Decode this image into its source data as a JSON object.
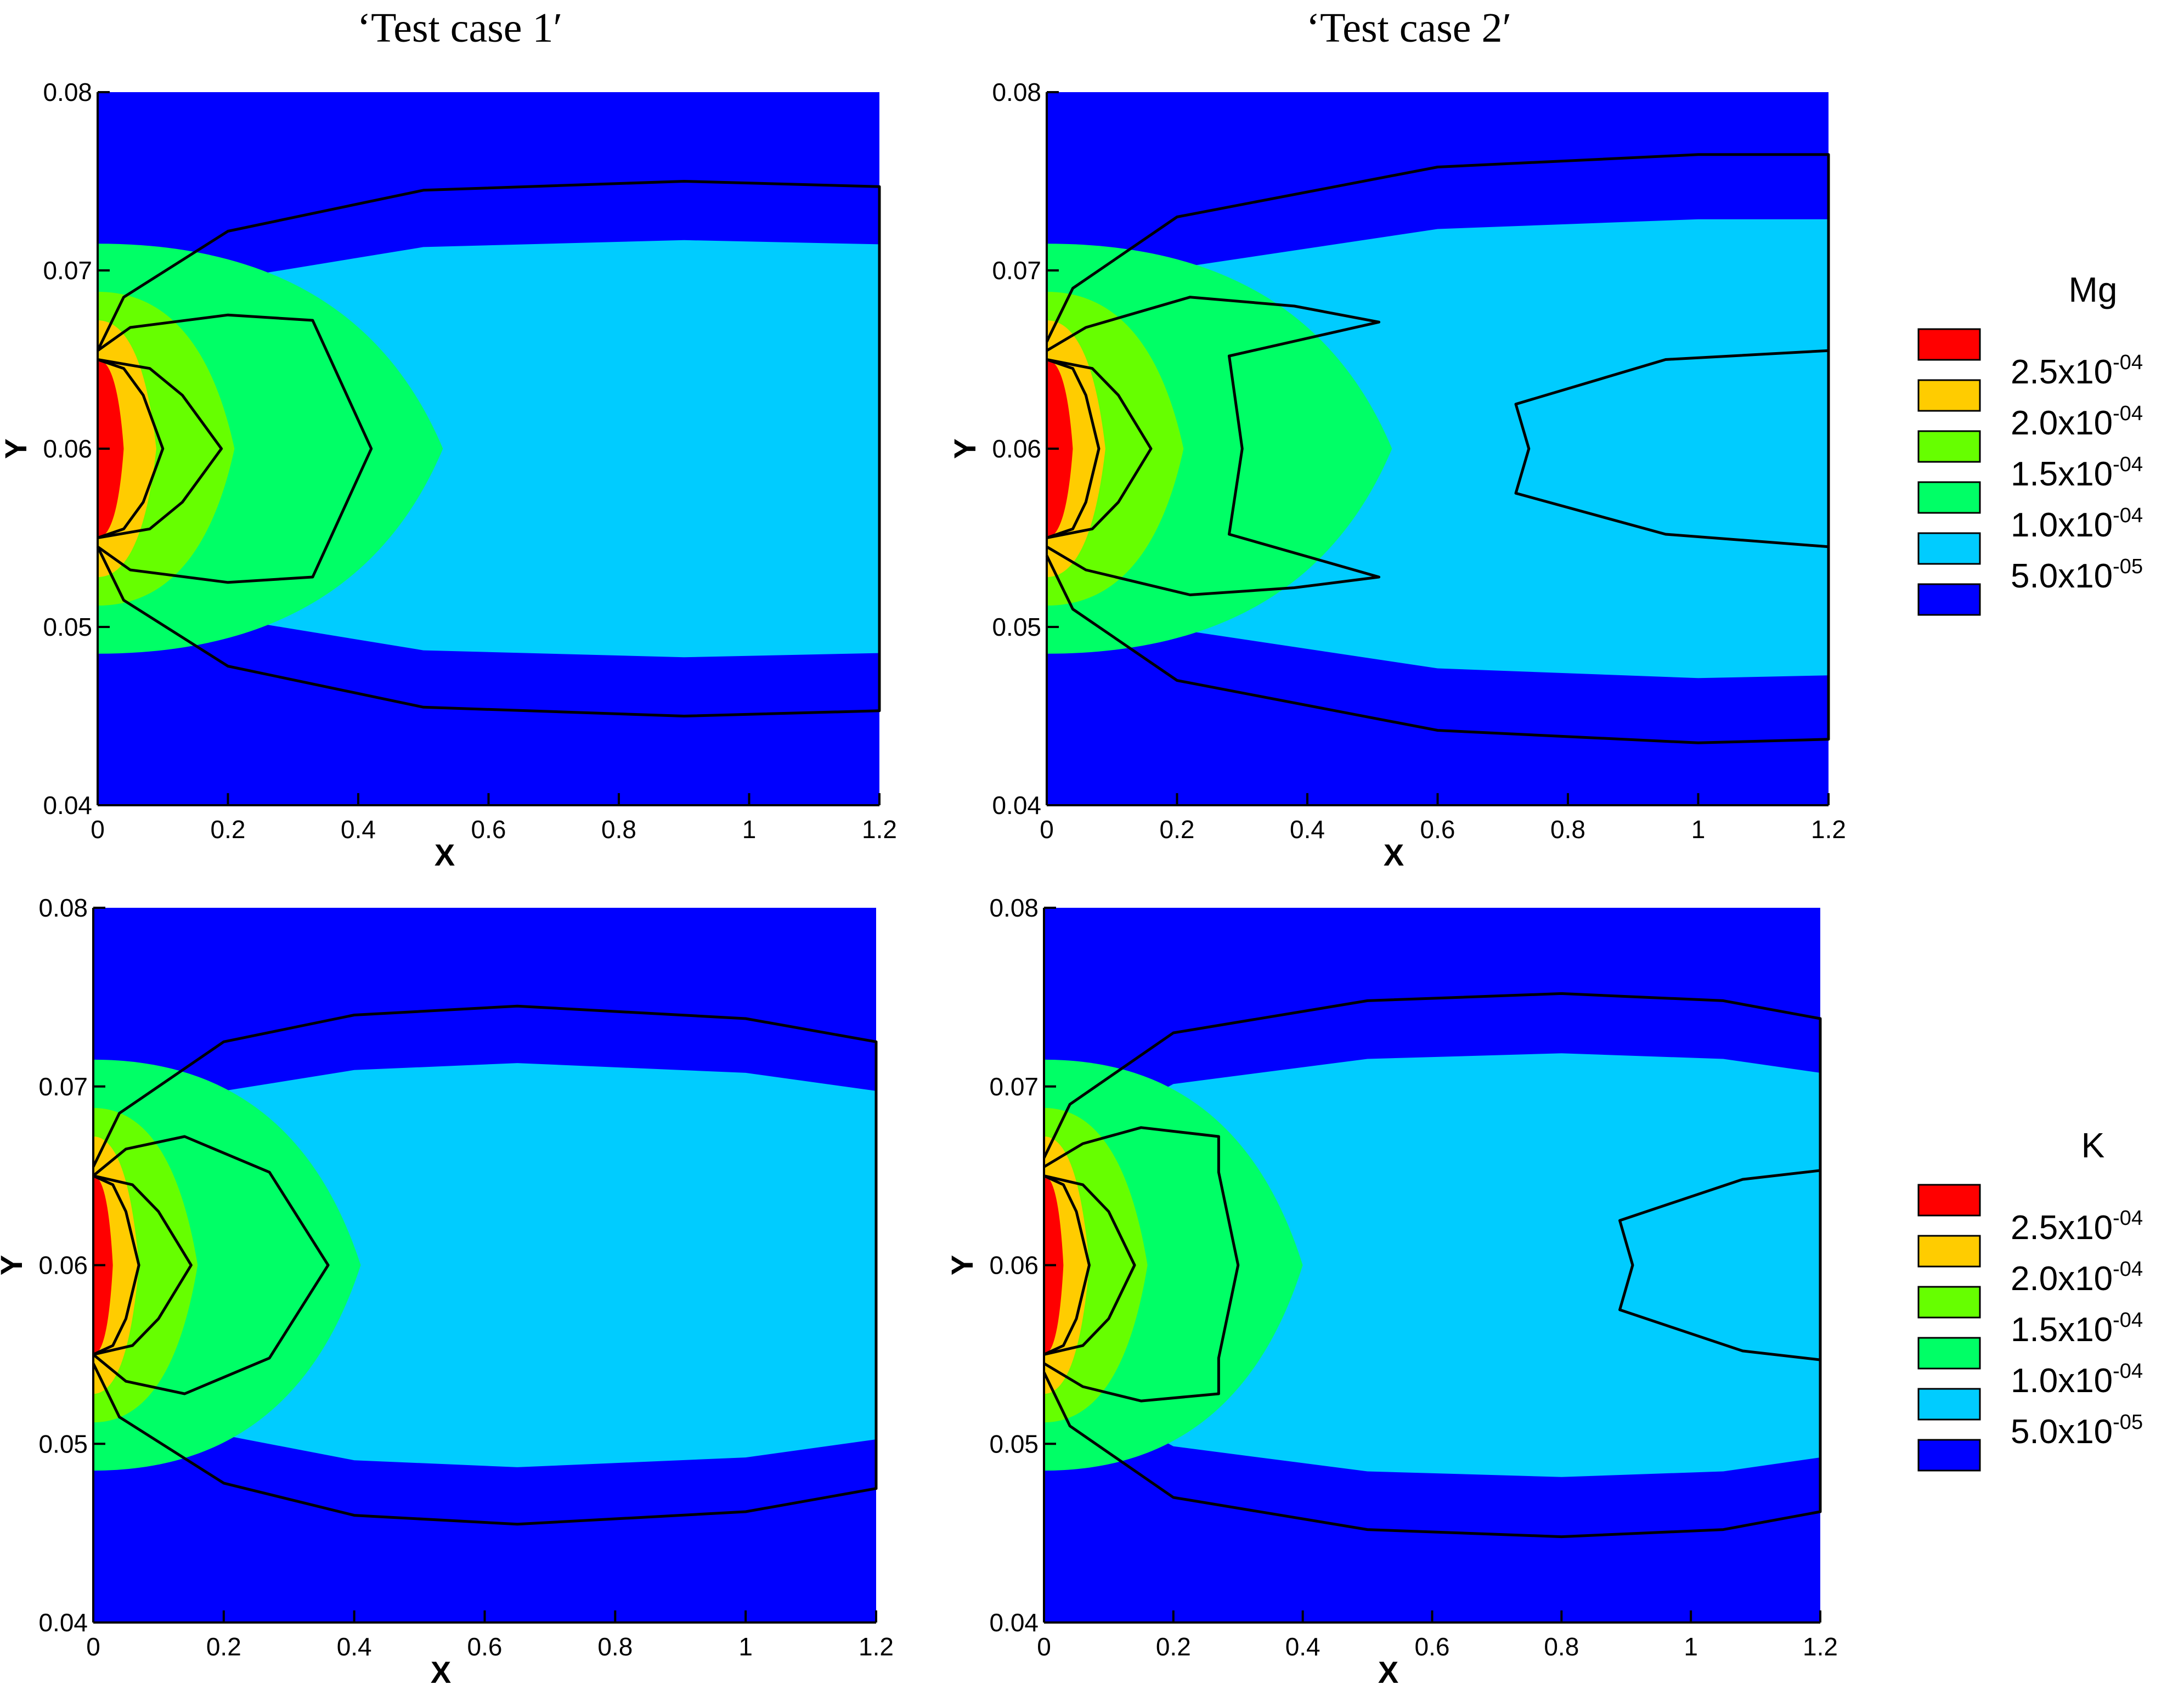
{
  "headers": [
    "‘Test case 1′",
    "‘Test case 2′"
  ],
  "colors": {
    "band_0": "#0000ff",
    "band_1": "#00ccff",
    "band_2": "#00ff66",
    "band_3": "#66ff00",
    "band_4": "#ffcc00",
    "band_5": "#ff0000",
    "contour_line": "#000000"
  },
  "legends": [
    {
      "title": "Mg",
      "entries": [
        {
          "mantissa": "2.5x10",
          "exp": "-04"
        },
        {
          "mantissa": "2.0x10",
          "exp": "-04"
        },
        {
          "mantissa": "1.5x10",
          "exp": "-04"
        },
        {
          "mantissa": "1.0x10",
          "exp": "-04"
        },
        {
          "mantissa": "5.0x10",
          "exp": "-05"
        }
      ]
    },
    {
      "title": "K",
      "entries": [
        {
          "mantissa": "2.5x10",
          "exp": "-04"
        },
        {
          "mantissa": "2.0x10",
          "exp": "-04"
        },
        {
          "mantissa": "1.5x10",
          "exp": "-04"
        },
        {
          "mantissa": "1.0x10",
          "exp": "-04"
        },
        {
          "mantissa": "5.0x10",
          "exp": "-05"
        }
      ]
    }
  ],
  "chart_data": [
    {
      "type": "heatmap",
      "species": "Mg",
      "case": "Test case 1",
      "xlabel": "X",
      "ylabel": "Y",
      "xlim": [
        0,
        1.2
      ],
      "ylim": [
        0.04,
        0.08
      ],
      "xticks": [
        "0",
        "0.2",
        "0.4",
        "0.6",
        "0.8",
        "1",
        "1.2"
      ],
      "yticks": [
        "0.04",
        "0.05",
        "0.06",
        "0.07",
        "0.08"
      ],
      "levels": [
        5e-05,
        0.0001,
        0.00015,
        0.0002,
        0.00025
      ],
      "filled_extent_x": [
        1.2,
        0.53,
        0.21,
        0.09,
        0.04
      ],
      "contour_lines": [
        [
          [
            0,
            0.0655
          ],
          [
            0.04,
            0.0685
          ],
          [
            0.2,
            0.0722
          ],
          [
            0.5,
            0.0745
          ],
          [
            0.9,
            0.075
          ],
          [
            1.2,
            0.0747
          ],
          [
            1.2,
            0.0453
          ],
          [
            0.9,
            0.045
          ],
          [
            0.5,
            0.0455
          ],
          [
            0.2,
            0.0478
          ],
          [
            0.04,
            0.0515
          ],
          [
            0,
            0.0545
          ]
        ],
        [
          [
            0,
            0.0655
          ],
          [
            0.05,
            0.0668
          ],
          [
            0.2,
            0.0675
          ],
          [
            0.33,
            0.0672
          ],
          [
            0.42,
            0.06
          ],
          [
            0.33,
            0.0528
          ],
          [
            0.2,
            0.0525
          ],
          [
            0.05,
            0.0532
          ],
          [
            0,
            0.0545
          ]
        ],
        [
          [
            0,
            0.065
          ],
          [
            0.08,
            0.0645
          ],
          [
            0.13,
            0.063
          ],
          [
            0.19,
            0.06
          ],
          [
            0.13,
            0.057
          ],
          [
            0.08,
            0.0555
          ],
          [
            0,
            0.055
          ]
        ],
        [
          [
            0,
            0.065
          ],
          [
            0.04,
            0.0645
          ],
          [
            0.07,
            0.063
          ],
          [
            0.1,
            0.06
          ],
          [
            0.07,
            0.057
          ],
          [
            0.04,
            0.0555
          ],
          [
            0,
            0.055
          ]
        ]
      ]
    },
    {
      "type": "heatmap",
      "species": "Mg",
      "case": "Test case 2",
      "xlabel": "X",
      "ylabel": "Y",
      "xlim": [
        0,
        1.2
      ],
      "ylim": [
        0.04,
        0.08
      ],
      "xticks": [
        "0",
        "0.2",
        "0.4",
        "0.6",
        "0.8",
        "1",
        "1.2"
      ],
      "yticks": [
        "0.04",
        "0.05",
        "0.06",
        "0.07",
        "0.08"
      ],
      "levels": [
        5e-05,
        0.0001,
        0.00015,
        0.0002,
        0.00025
      ],
      "filled_extent_x": [
        1.2,
        0.53,
        0.21,
        0.09,
        0.04
      ],
      "contour_lines": [
        [
          [
            0,
            0.066
          ],
          [
            0.04,
            0.069
          ],
          [
            0.2,
            0.073
          ],
          [
            0.6,
            0.0758
          ],
          [
            1.0,
            0.0765
          ],
          [
            1.2,
            0.0765
          ],
          [
            1.2,
            0.0437
          ],
          [
            1.0,
            0.0435
          ],
          [
            0.6,
            0.0442
          ],
          [
            0.2,
            0.047
          ],
          [
            0.04,
            0.051
          ],
          [
            0,
            0.054
          ]
        ],
        [
          [
            0,
            0.0655
          ],
          [
            0.06,
            0.0668
          ],
          [
            0.22,
            0.0685
          ],
          [
            0.38,
            0.068
          ],
          [
            0.51,
            0.0671
          ],
          [
            0.28,
            0.0652
          ],
          [
            0.3,
            0.06
          ],
          [
            0.28,
            0.0552
          ],
          [
            0.51,
            0.0528
          ],
          [
            0.38,
            0.0522
          ],
          [
            0.22,
            0.0518
          ],
          [
            0.06,
            0.0532
          ],
          [
            0,
            0.0545
          ]
        ],
        [
          [
            0,
            0.065
          ],
          [
            0.07,
            0.0645
          ],
          [
            0.11,
            0.063
          ],
          [
            0.16,
            0.06
          ],
          [
            0.11,
            0.057
          ],
          [
            0.07,
            0.0555
          ],
          [
            0,
            0.055
          ]
        ],
        [
          [
            0,
            0.065
          ],
          [
            0.04,
            0.0645
          ],
          [
            0.06,
            0.063
          ],
          [
            0.08,
            0.06
          ],
          [
            0.06,
            0.057
          ],
          [
            0.04,
            0.0555
          ],
          [
            0,
            0.055
          ]
        ],
        [
          [
            1.2,
            0.0655
          ],
          [
            0.95,
            0.065
          ],
          [
            0.72,
            0.0625
          ],
          [
            0.74,
            0.06
          ],
          [
            0.72,
            0.0575
          ],
          [
            0.95,
            0.0552
          ],
          [
            1.2,
            0.0545
          ]
        ]
      ]
    },
    {
      "type": "heatmap",
      "species": "K",
      "case": "Test case 1",
      "xlabel": "X",
      "ylabel": "Y",
      "xlim": [
        0,
        1.2
      ],
      "ylim": [
        0.04,
        0.08
      ],
      "xticks": [
        "0",
        "0.2",
        "0.4",
        "0.6",
        "0.8",
        "1",
        "1.2"
      ],
      "yticks": [
        "0.04",
        "0.05",
        "0.06",
        "0.07",
        "0.08"
      ],
      "levels": [
        5e-05,
        0.0001,
        0.00015,
        0.0002,
        0.00025
      ],
      "filled_extent_x": [
        1.2,
        0.41,
        0.16,
        0.07,
        0.03
      ],
      "contour_lines": [
        [
          [
            0,
            0.0655
          ],
          [
            0.04,
            0.0685
          ],
          [
            0.2,
            0.0725
          ],
          [
            0.4,
            0.074
          ],
          [
            0.65,
            0.0745
          ],
          [
            1.0,
            0.0738
          ],
          [
            1.2,
            0.0725
          ],
          [
            1.2,
            0.0475
          ],
          [
            1.0,
            0.0462
          ],
          [
            0.65,
            0.0455
          ],
          [
            0.4,
            0.046
          ],
          [
            0.2,
            0.0478
          ],
          [
            0.04,
            0.0515
          ],
          [
            0,
            0.0545
          ]
        ],
        [
          [
            0,
            0.065
          ],
          [
            0.05,
            0.0665
          ],
          [
            0.14,
            0.0672
          ],
          [
            0.27,
            0.0652
          ],
          [
            0.36,
            0.06
          ],
          [
            0.27,
            0.0548
          ],
          [
            0.14,
            0.0528
          ],
          [
            0.05,
            0.0535
          ],
          [
            0,
            0.055
          ]
        ],
        [
          [
            0,
            0.065
          ],
          [
            0.06,
            0.0645
          ],
          [
            0.1,
            0.063
          ],
          [
            0.15,
            0.06
          ],
          [
            0.1,
            0.057
          ],
          [
            0.06,
            0.0555
          ],
          [
            0,
            0.055
          ]
        ],
        [
          [
            0,
            0.065
          ],
          [
            0.03,
            0.0645
          ],
          [
            0.05,
            0.063
          ],
          [
            0.07,
            0.06
          ],
          [
            0.05,
            0.057
          ],
          [
            0.03,
            0.0555
          ],
          [
            0,
            0.055
          ]
        ]
      ]
    },
    {
      "type": "heatmap",
      "species": "K",
      "case": "Test case 2",
      "xlabel": "X",
      "ylabel": "Y",
      "xlim": [
        0,
        1.2
      ],
      "ylim": [
        0.04,
        0.08
      ],
      "xticks": [
        "0",
        "0.2",
        "0.4",
        "0.6",
        "0.8",
        "1",
        "1.2"
      ],
      "yticks": [
        "0.04",
        "0.05",
        "0.06",
        "0.07",
        "0.08"
      ],
      "levels": [
        5e-05,
        0.0001,
        0.00015,
        0.0002,
        0.00025
      ],
      "filled_extent_x": [
        1.2,
        0.4,
        0.16,
        0.07,
        0.03
      ],
      "contour_lines": [
        [
          [
            0,
            0.066
          ],
          [
            0.04,
            0.069
          ],
          [
            0.2,
            0.073
          ],
          [
            0.5,
            0.0748
          ],
          [
            0.8,
            0.0752
          ],
          [
            1.05,
            0.0748
          ],
          [
            1.2,
            0.0738
          ],
          [
            1.2,
            0.0462
          ],
          [
            1.05,
            0.0452
          ],
          [
            0.8,
            0.0448
          ],
          [
            0.5,
            0.0452
          ],
          [
            0.2,
            0.047
          ],
          [
            0.04,
            0.051
          ],
          [
            0,
            0.054
          ]
        ],
        [
          [
            0,
            0.0655
          ],
          [
            0.06,
            0.0668
          ],
          [
            0.15,
            0.0677
          ],
          [
            0.27,
            0.0672
          ],
          [
            0.27,
            0.0652
          ],
          [
            0.3,
            0.06
          ],
          [
            0.27,
            0.0548
          ],
          [
            0.27,
            0.0528
          ],
          [
            0.15,
            0.0524
          ],
          [
            0.06,
            0.0532
          ],
          [
            0,
            0.0545
          ]
        ],
        [
          [
            0,
            0.065
          ],
          [
            0.06,
            0.0645
          ],
          [
            0.1,
            0.063
          ],
          [
            0.14,
            0.06
          ],
          [
            0.1,
            0.057
          ],
          [
            0.06,
            0.0555
          ],
          [
            0,
            0.055
          ]
        ],
        [
          [
            0,
            0.065
          ],
          [
            0.03,
            0.0645
          ],
          [
            0.05,
            0.063
          ],
          [
            0.07,
            0.06
          ],
          [
            0.05,
            0.057
          ],
          [
            0.03,
            0.0555
          ],
          [
            0,
            0.055
          ]
        ],
        [
          [
            1.2,
            0.0653
          ],
          [
            1.08,
            0.0648
          ],
          [
            0.89,
            0.0625
          ],
          [
            0.91,
            0.06
          ],
          [
            0.89,
            0.0575
          ],
          [
            1.08,
            0.0552
          ],
          [
            1.2,
            0.0547
          ]
        ]
      ]
    }
  ]
}
